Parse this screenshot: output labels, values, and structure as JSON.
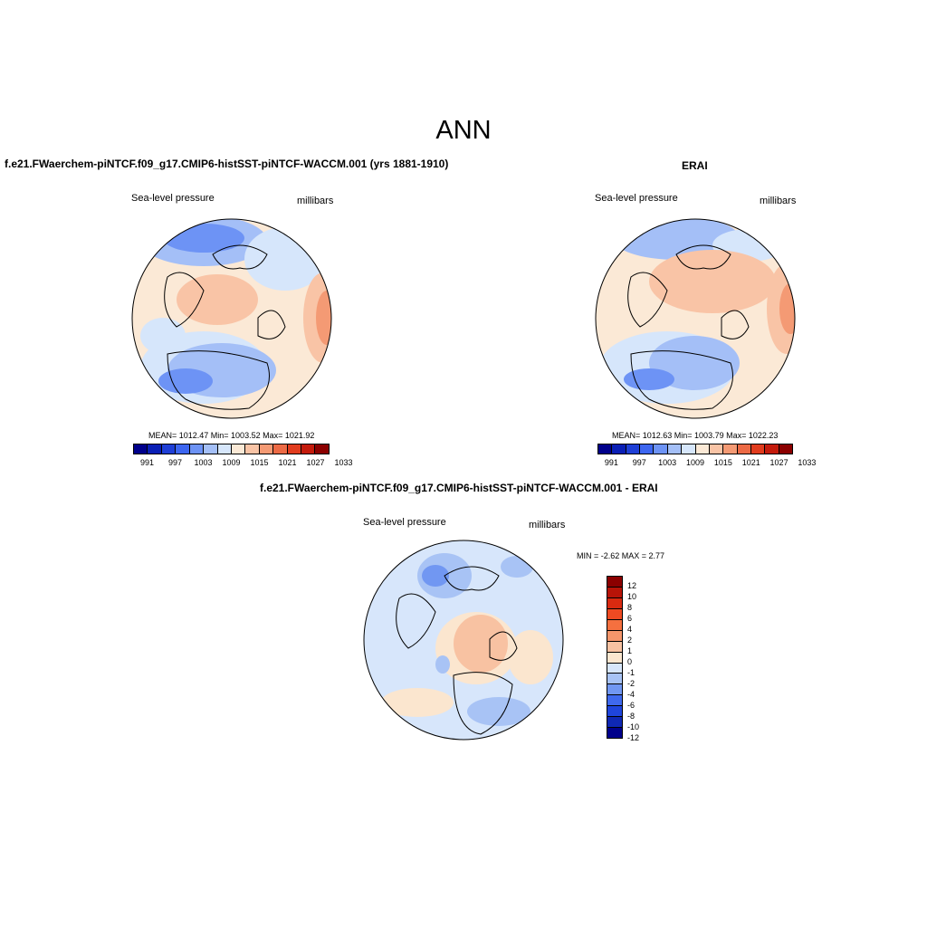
{
  "title": "ANN",
  "panels": [
    {
      "case_title": "f.e21.FWaerchem-piNTCF.f09_g17.CMIP6-histSST-piNTCF-WACCM.001 (yrs 1881-1910)",
      "left_label": "Sea-level pressure",
      "right_label": "millibars",
      "stats": "MEAN= 1012.47  Min= 1003.52  Max= 1021.92"
    },
    {
      "case_title": "ERAI",
      "left_label": "Sea-level pressure",
      "right_label": "millibars",
      "stats": "MEAN= 1012.63  Min= 1003.79  Max= 1022.23"
    }
  ],
  "colorbar_abs": {
    "labels": [
      "991",
      "997",
      "1003",
      "1009",
      "1015",
      "1021",
      "1027",
      "1033"
    ],
    "colors": [
      "#00008b",
      "#0a1fb5",
      "#1f3fd6",
      "#3d66f0",
      "#6d93f5",
      "#a4bff7",
      "#d6e6fb",
      "#fbe9d6",
      "#f9c4a6",
      "#f49a74",
      "#ec6a45",
      "#e13c1e",
      "#c41b0c",
      "#8b0000"
    ]
  },
  "diff_panel": {
    "case_title": "f.e21.FWaerchem-piNTCF.f09_g17.CMIP6-histSST-piNTCF-WACCM.001 - ERAI",
    "left_label": "Sea-level pressure",
    "right_label": "millibars",
    "stats": "MIN =  -2.62 MAX =   2.77"
  },
  "colorbar_diff": {
    "labels": [
      "12",
      "10",
      "8",
      "6",
      "4",
      "2",
      "1",
      "0",
      "-1",
      "-2",
      "-4",
      "-6",
      "-8",
      "-10",
      "-12"
    ],
    "colors": [
      "#8b0000",
      "#b81408",
      "#d92a10",
      "#ef4a22",
      "#f5703f",
      "#f5966b",
      "#f8c2a2",
      "#fbe6cf",
      "#d7e6fb",
      "#a8c3f5",
      "#7197f2",
      "#3f69ee",
      "#1f45dc",
      "#0f28b4",
      "#00008b"
    ]
  }
}
